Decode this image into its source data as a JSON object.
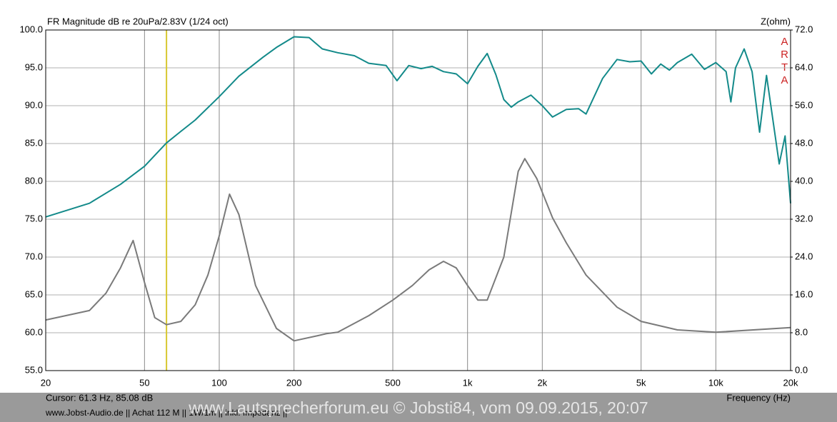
{
  "chart_data": {
    "type": "line",
    "title": "FR Magnitude dB re 20uPa/2.83V (1/24 oct)",
    "y2_label": "Z(ohm)",
    "x_label": "Frequency (Hz)",
    "brand": "ARTA",
    "cursor": {
      "label": "Cursor: 61.3 Hz, 85.08 dB",
      "x": 61.3
    },
    "footer": "www.Jobst-Audio.de  ||  Achat 112 M  ||  1W/1m  ||  inkl. Impedanz  ||",
    "watermark": "www.Lautsprecherforum.eu © Jobsti84, vom 09.09.2015, 20:07",
    "log_x": true,
    "grid": true,
    "xlim": [
      20,
      20000
    ],
    "xticks": [
      20,
      50,
      100,
      200,
      500,
      {
        "value": 1000,
        "label": "1k"
      },
      {
        "value": 2000,
        "label": "2k"
      },
      {
        "value": 5000,
        "label": "5k"
      },
      {
        "value": 10000,
        "label": "10k"
      },
      {
        "value": 20000,
        "label": "20k"
      }
    ],
    "ylim": [
      55,
      100
    ],
    "yticks": [
      {
        "value": 55,
        "label": "55.0"
      },
      {
        "value": 60,
        "label": "60.0"
      },
      {
        "value": 65,
        "label": "65.0"
      },
      {
        "value": 70,
        "label": "70.0"
      },
      {
        "value": 75,
        "label": "75.0"
      },
      {
        "value": 80,
        "label": "80.0"
      },
      {
        "value": 85,
        "label": "85.0"
      },
      {
        "value": 90,
        "label": "90.0"
      },
      {
        "value": 95,
        "label": "95.0"
      },
      {
        "value": 100,
        "label": "100.0"
      }
    ],
    "y2lim": [
      0,
      72
    ],
    "y2ticks": [
      {
        "value": 0,
        "label": "0.0"
      },
      {
        "value": 8,
        "label": "8.0"
      },
      {
        "value": 16,
        "label": "16.0"
      },
      {
        "value": 24,
        "label": "24.0"
      },
      {
        "value": 32,
        "label": "32.0"
      },
      {
        "value": 40,
        "label": "40.0"
      },
      {
        "value": 48,
        "label": "48.0"
      },
      {
        "value": 56,
        "label": "56.0"
      },
      {
        "value": 64,
        "label": "64.0"
      },
      {
        "value": 72,
        "label": "72.0"
      }
    ],
    "series": [
      {
        "color": "#138a8a",
        "x": [
          20,
          30,
          40,
          50,
          61.3,
          70,
          80,
          100,
          120,
          150,
          170,
          200,
          230,
          260,
          300,
          350,
          400,
          470,
          520,
          580,
          650,
          720,
          800,
          900,
          1000,
          1100,
          1200,
          1300,
          1400,
          1500,
          1600,
          1800,
          2000,
          2200,
          2500,
          2800,
          3000,
          3500,
          4000,
          4500,
          5000,
          5500,
          6000,
          6500,
          7000,
          8000,
          9000,
          10000,
          11000,
          11500,
          12000,
          13000,
          14000,
          15000,
          16000,
          18000,
          19000,
          20000
        ],
        "values": [
          75.3,
          77.1,
          79.6,
          82.0,
          85.08,
          86.6,
          88.1,
          91.2,
          93.9,
          96.4,
          97.7,
          99.1,
          99.0,
          97.5,
          97.0,
          96.6,
          95.6,
          95.3,
          93.3,
          95.3,
          94.9,
          95.2,
          94.5,
          94.2,
          92.9,
          95.2,
          96.9,
          94.1,
          90.8,
          89.8,
          90.5,
          91.4,
          90.0,
          88.5,
          89.5,
          89.6,
          88.9,
          93.6,
          96.1,
          95.8,
          95.9,
          94.2,
          95.5,
          94.7,
          95.7,
          96.8,
          94.8,
          95.7,
          94.5,
          90.5,
          95.0,
          97.5,
          94.5,
          86.5,
          94.0,
          82.3,
          86.0,
          77.1
        ]
      },
      {
        "color": "#7a7a7a",
        "axis": "y2",
        "x": [
          20,
          30,
          35,
          40,
          45,
          50,
          55,
          61.3,
          70,
          80,
          90,
          100,
          110,
          120,
          140,
          170,
          200,
          250,
          270,
          300,
          400,
          500,
          600,
          700,
          800,
          900,
          1000,
          1100,
          1200,
          1400,
          1600,
          1700,
          1900,
          2200,
          2500,
          3000,
          4000,
          5000,
          7000,
          10000,
          20000
        ],
        "values": [
          10.7,
          12.7,
          16.4,
          21.7,
          27.5,
          18.6,
          11.2,
          9.7,
          10.4,
          13.9,
          20.2,
          28.5,
          37.3,
          33.0,
          18.0,
          8.9,
          6.3,
          7.4,
          7.8,
          8.1,
          11.6,
          14.9,
          18.0,
          21.3,
          23.1,
          21.7,
          18.0,
          14.9,
          14.9,
          24.0,
          42.1,
          44.8,
          40.6,
          32.3,
          27.0,
          20.2,
          13.4,
          10.4,
          8.6,
          8.1,
          9.1
        ]
      }
    ]
  }
}
